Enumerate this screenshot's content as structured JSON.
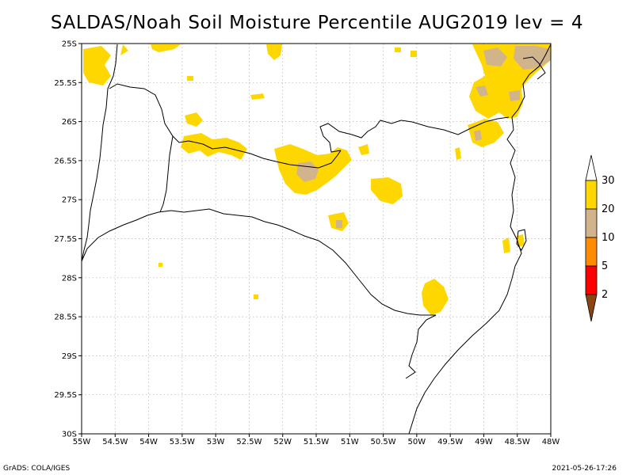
{
  "title": "SALDAS/Noah Soil Moisture Percentile AUG2019 lev = 4",
  "footer": {
    "left": "GrADS: COLA/IGES",
    "right": "2021-05-26-17:26"
  },
  "axes": {
    "lon_labels": [
      "55W",
      "54.5W",
      "54W",
      "53.5W",
      "53W",
      "52.5W",
      "52W",
      "51.5W",
      "51W",
      "50.5W",
      "50W",
      "49.5W",
      "49W",
      "48.5W",
      "48W"
    ],
    "lat_labels": [
      "25S",
      "25.5S",
      "26S",
      "26.5S",
      "27S",
      "27.5S",
      "28S",
      "28.5S",
      "29S",
      "29.5S",
      "30S"
    ],
    "lon_range": [
      -55,
      -48
    ],
    "lat_range": [
      -25,
      -30
    ]
  },
  "legend": {
    "labels": [
      "2",
      "5",
      "10",
      "20",
      "30"
    ],
    "colors": {
      "lt2": "#8b4513",
      "c2_5": "#ff0000",
      "c5_10": "#ff8c00",
      "c10_20": "#d2b48c",
      "c20_30": "#ffd700",
      "gt30": "#ffffff"
    }
  },
  "colors": {
    "yellow": "#ffd700",
    "tan": "#d2b48c",
    "line": "#000000",
    "grid": "#b0b0b0"
  }
}
